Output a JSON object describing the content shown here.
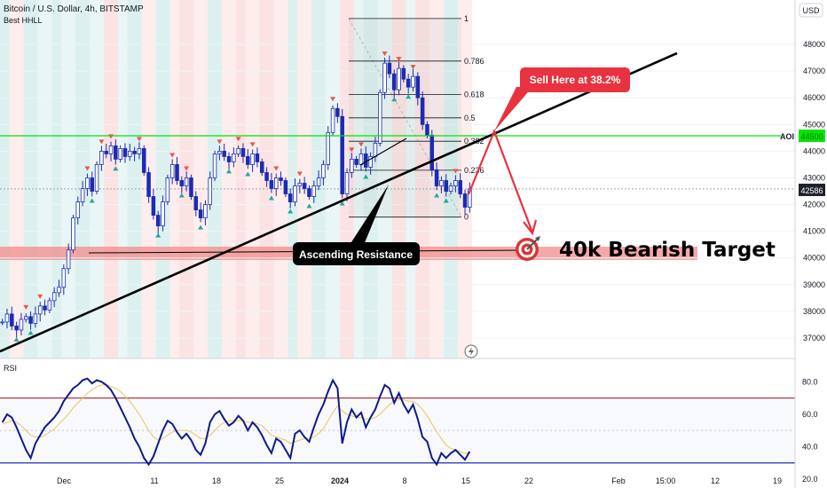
{
  "header": {
    "symbol_line": "Bitcoin / U.S. Dollar, 4h, BITSTAMP",
    "indicator": "Best HHLL"
  },
  "currency_button": "USD",
  "annotations": {
    "sell_callout": "Sell Here at 38.2%",
    "ascending_resistance": "Ascending Resistance",
    "target_text": "40k Bearish Target",
    "aoi_label": "AOI"
  },
  "price_badges": {
    "aoi_value": "44500",
    "last_price": "42586"
  },
  "rsi_label": "RSI",
  "colors": {
    "bull": "#26a69a",
    "bear": "#ef5350",
    "candle": "#1c2bb3",
    "aoi_line": "#00e600",
    "target_zone": "#f28b8b",
    "callout": "#e8323f"
  },
  "chart_data": [
    {
      "type": "line",
      "name": "price",
      "x_tick_labels": [
        "Dec",
        "11",
        "18",
        "25",
        "2024",
        "8",
        "15",
        "22",
        "Feb",
        "15:00",
        "12",
        "19"
      ],
      "y_tick_labels": [
        "48000",
        "47000",
        "46000",
        "45000",
        "44000",
        "43000",
        "42000",
        "41000",
        "40000",
        "39000",
        "38000",
        "37000"
      ],
      "ylim": [
        36500,
        49000
      ],
      "aoi_level": 44500,
      "target_zone": [
        40000,
        40500
      ],
      "last_price": 42586,
      "fibonacci": {
        "levels": [
          "1",
          "0.786",
          "0.618",
          "0.5",
          "0.382",
          "0.236",
          "0"
        ],
        "high": 48970,
        "low": 41530
      },
      "series": [
        {
          "values": [
            37600,
            37900,
            37450,
            37300,
            37700,
            37800,
            37550,
            37900,
            38200,
            38050,
            38400,
            38700,
            38900,
            39600,
            40300,
            41500,
            42100,
            42600,
            43000,
            42500,
            43500,
            44000,
            43900,
            44200,
            43700,
            44100,
            43800,
            44000,
            43900,
            44100,
            43200,
            42300,
            41600,
            41200,
            42100,
            43000,
            43500,
            42900,
            42700,
            43000,
            42300,
            41800,
            41500,
            42000,
            43000,
            43900,
            44000,
            43800,
            43600,
            43900,
            44100,
            43800,
            43500,
            43900,
            43600,
            43200,
            42900,
            42600,
            43000,
            42900,
            42400,
            42100,
            42700,
            42800,
            42600,
            42300,
            42700,
            43000,
            43500,
            44700,
            45600,
            45300,
            42400,
            43200,
            43700,
            43500,
            43900,
            43400,
            43800,
            44300,
            46200,
            47300,
            46900,
            46300,
            47100,
            46700,
            46400,
            46800,
            46000,
            45000,
            44600,
            43300,
            42700,
            42900,
            42500,
            42700,
            42900,
            42400,
            41900,
            42586
          ]
        }
      ]
    },
    {
      "type": "line",
      "name": "RSI",
      "y_tick_labels": [
        "80.0",
        "60.0",
        "40.0",
        "20.0"
      ],
      "ylim": [
        20,
        90
      ],
      "levels": [
        70,
        30
      ],
      "series": [
        {
          "values": [
            55,
            60,
            58,
            52,
            45,
            38,
            33,
            42,
            47,
            52,
            55,
            58,
            62,
            68,
            72,
            76,
            78,
            81,
            82,
            79,
            81,
            80,
            78,
            75,
            70,
            64,
            58,
            52,
            45,
            40,
            33,
            29,
            34,
            42,
            50,
            56,
            54,
            49,
            45,
            48,
            44,
            38,
            35,
            42,
            55,
            60,
            62,
            57,
            53,
            55,
            59,
            56,
            50,
            55,
            52,
            47,
            41,
            36,
            45,
            43,
            38,
            33,
            48,
            50,
            46,
            43,
            52,
            60,
            66,
            74,
            81,
            76,
            42,
            55,
            63,
            58,
            61,
            52,
            58,
            63,
            71,
            78,
            76,
            67,
            73,
            66,
            61,
            66,
            57,
            46,
            43,
            33,
            29,
            36,
            33,
            36,
            38,
            35,
            32,
            37
          ]
        },
        {
          "values": [
            54,
            55,
            56,
            55,
            53,
            50,
            47,
            46,
            46,
            47,
            49,
            51,
            54,
            57,
            60,
            64,
            67,
            70,
            73,
            75,
            77,
            78,
            78,
            77,
            76,
            74,
            71,
            68,
            64,
            60,
            55,
            50,
            46,
            44,
            45,
            47,
            49,
            50,
            50,
            50,
            49,
            47,
            45,
            45,
            47,
            50,
            53,
            55,
            56,
            56,
            56,
            56,
            55,
            55,
            54,
            53,
            50,
            47,
            46,
            45,
            44,
            42,
            43,
            44,
            45,
            45,
            46,
            48,
            51,
            56,
            61,
            65,
            62,
            60,
            59,
            58,
            58,
            57,
            57,
            58,
            60,
            63,
            66,
            68,
            69,
            69,
            68,
            68,
            66,
            63,
            59,
            54,
            49,
            45,
            41,
            39,
            38,
            37,
            36,
            36
          ]
        }
      ]
    }
  ]
}
